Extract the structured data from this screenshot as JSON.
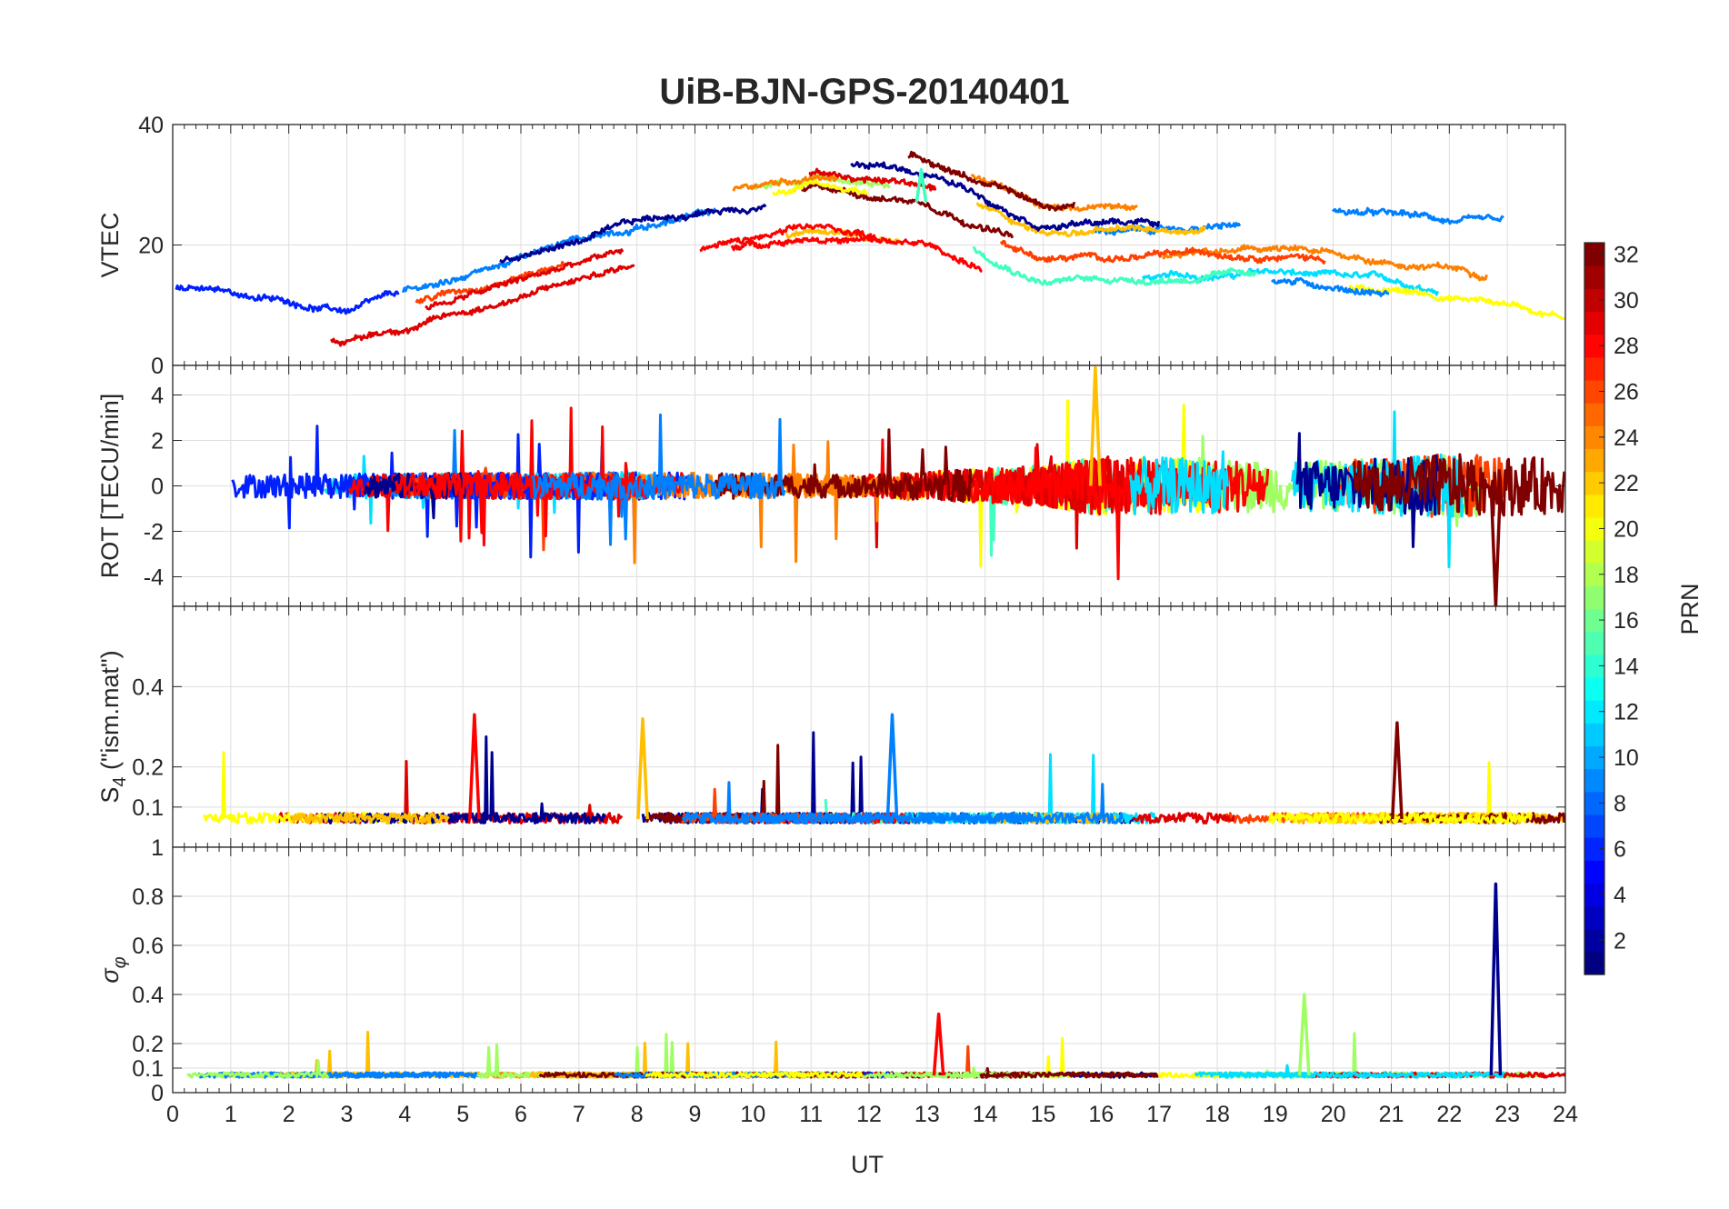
{
  "chart_data": {
    "type": "line",
    "title": "UiB-BJN-GPS-20140401",
    "xlabel": "UT",
    "xlim": [
      0,
      24
    ],
    "x_ticks": [
      0,
      1,
      2,
      3,
      4,
      5,
      6,
      7,
      8,
      9,
      10,
      11,
      12,
      13,
      14,
      15,
      16,
      17,
      18,
      19,
      20,
      21,
      22,
      23,
      24
    ],
    "grid": true,
    "panels": [
      {
        "id": "vtec",
        "ylabel": "VTEC",
        "ylim": [
          0,
          40
        ],
        "y_ticks": [
          0,
          20,
          40
        ],
        "tick_labels": [
          "0",
          "20",
          "40"
        ],
        "base": 16,
        "trend": [
          [
            0,
            15
          ],
          [
            3,
            11
          ],
          [
            5,
            16
          ],
          [
            8,
            24
          ],
          [
            11,
            29
          ],
          [
            13,
            27
          ],
          [
            15,
            19
          ],
          [
            17,
            19
          ],
          [
            19,
            20
          ],
          [
            21,
            18
          ],
          [
            23,
            16
          ],
          [
            24,
            14
          ]
        ],
        "noise": 2.5,
        "spike_height": 4,
        "spike_rate": 0.002
      },
      {
        "id": "rot",
        "ylabel": "ROT [TECU/min]",
        "ylim": [
          -5.3,
          5.3
        ],
        "y_ticks": [
          -4,
          -2,
          0,
          2,
          4
        ],
        "tick_labels": [
          "-4",
          "-2",
          "0",
          "2",
          "4"
        ],
        "base": 0,
        "trend": [
          [
            0,
            0
          ],
          [
            24,
            0
          ]
        ],
        "noise_profile": [
          [
            0,
            0.5
          ],
          [
            8,
            0.6
          ],
          [
            12,
            0.5
          ],
          [
            15,
            0.9
          ],
          [
            16,
            1.3
          ],
          [
            20,
            1.1
          ],
          [
            22,
            1.4
          ],
          [
            24,
            1.2
          ]
        ],
        "spike_height": 3.5,
        "spike_rate": 0.02
      },
      {
        "id": "s4",
        "ylabel": "S4 (\"ism.mat\")",
        "ylabel_main": "S",
        "ylabel_sub": "4",
        "ylabel_rest": " (\"ism.mat\")",
        "ylim": [
          0,
          0.6
        ],
        "y_ticks": [
          0.1,
          0.2,
          0.4
        ],
        "tick_labels": [
          "0.1",
          "0.2",
          "0.4"
        ],
        "base": 0.07,
        "trend": [
          [
            0,
            0.07
          ],
          [
            24,
            0.07
          ]
        ],
        "noise": 0.025,
        "spike_height": 0.22,
        "spike_rate": 0.006
      },
      {
        "id": "sigma",
        "ylabel": "σφ",
        "ylabel_main": "σ",
        "ylabel_sub": "φ",
        "ylim": [
          0,
          1
        ],
        "y_ticks": [
          0,
          0.1,
          0.2,
          0.4,
          0.6,
          0.8
        ],
        "tick_labels": [
          "0",
          "0.1",
          "0.2",
          "0.4",
          "0.6",
          "0.8"
        ],
        "axis_top_label": "1",
        "base": 0.07,
        "trend": [
          [
            0,
            0.07
          ],
          [
            24,
            0.07
          ]
        ],
        "noise": 0.02,
        "spike_height": 0.18,
        "spike_rate": 0.006
      }
    ],
    "colorbar": {
      "label": "PRN",
      "range": [
        1,
        32
      ],
      "ticks": [
        2,
        4,
        6,
        8,
        10,
        12,
        14,
        16,
        18,
        20,
        22,
        24,
        26,
        28,
        30,
        32
      ],
      "tick_labels": [
        "2",
        "4",
        "6",
        "8",
        "10",
        "12",
        "14",
        "16",
        "18",
        "20",
        "22",
        "24",
        "26",
        "28",
        "30",
        "32"
      ],
      "colormap": "jet"
    },
    "series_palette": [
      "#00008f",
      "#0020ff",
      "#0080ff",
      "#00dfff",
      "#40ffbf",
      "#9fff60",
      "#ffff00",
      "#ffbf00",
      "#ff8000",
      "#ff4000",
      "#ff0000",
      "#df0000",
      "#800000"
    ],
    "notable_peaks": [
      {
        "panel": "vtec",
        "x": 12.9,
        "y": 32.5
      },
      {
        "panel": "rot",
        "x": 15.9,
        "y": 5.2
      },
      {
        "panel": "rot",
        "x": 22.8,
        "y": -5.3
      },
      {
        "panel": "s4",
        "x": 5.2,
        "y": 0.33
      },
      {
        "panel": "s4",
        "x": 12.4,
        "y": 0.33
      },
      {
        "panel": "s4",
        "x": 8.1,
        "y": 0.32
      },
      {
        "panel": "s4",
        "x": 21.1,
        "y": 0.31
      },
      {
        "panel": "sigma",
        "x": 22.8,
        "y": 0.85
      },
      {
        "panel": "sigma",
        "x": 19.5,
        "y": 0.4
      },
      {
        "panel": "sigma",
        "x": 13.2,
        "y": 0.32
      }
    ]
  }
}
